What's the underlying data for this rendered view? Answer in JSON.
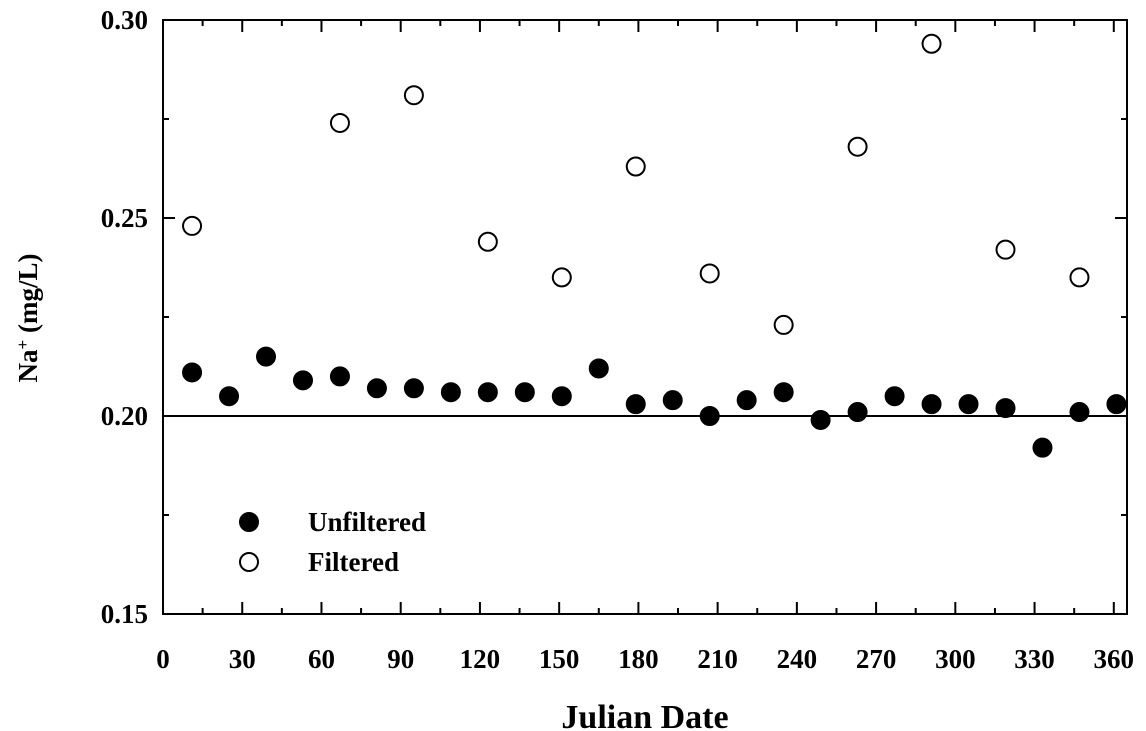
{
  "chart_data": {
    "type": "scatter",
    "xlabel": "Julian Date",
    "ylabel": "Na",
    "ylabel_sup": "+",
    "ylabel_unit": " (mg/L)",
    "xlim": [
      0,
      365
    ],
    "ylim": [
      0.15,
      0.3
    ],
    "xticks": [
      0,
      30,
      60,
      90,
      120,
      150,
      180,
      210,
      240,
      270,
      300,
      330,
      360
    ],
    "xticklabels": [
      "0",
      "30",
      "60",
      "90",
      "120",
      "150",
      "180",
      "210",
      "240",
      "270",
      "300",
      "330",
      "360"
    ],
    "yticks": [
      0.15,
      0.2,
      0.25,
      0.3
    ],
    "yticklabels": [
      "0.15",
      "0.20",
      "0.25",
      "0.30"
    ],
    "reference_line": 0.2,
    "grid": false,
    "legend_position": "bottom-left",
    "series": [
      {
        "name": "Unfiltered",
        "marker": "filled-circle",
        "color": "#000000",
        "x": [
          11,
          25,
          39,
          53,
          67,
          81,
          95,
          109,
          123,
          137,
          151,
          165,
          179,
          193,
          207,
          221,
          235,
          249,
          263,
          277,
          291,
          305,
          319,
          333,
          347,
          361
        ],
        "y": [
          0.211,
          0.205,
          0.215,
          0.209,
          0.21,
          0.207,
          0.207,
          0.206,
          0.206,
          0.206,
          0.205,
          0.212,
          0.203,
          0.204,
          0.2,
          0.204,
          0.206,
          0.199,
          0.201,
          0.205,
          0.203,
          0.203,
          0.202,
          0.192,
          0.201,
          0.203
        ]
      },
      {
        "name": "Filtered",
        "marker": "open-circle",
        "color": "#000000",
        "x": [
          11,
          67,
          95,
          123,
          151,
          179,
          207,
          235,
          263,
          291,
          319,
          347
        ],
        "y": [
          0.248,
          0.274,
          0.281,
          0.244,
          0.235,
          0.263,
          0.236,
          0.223,
          0.268,
          0.294,
          0.242,
          0.235
        ]
      }
    ]
  }
}
